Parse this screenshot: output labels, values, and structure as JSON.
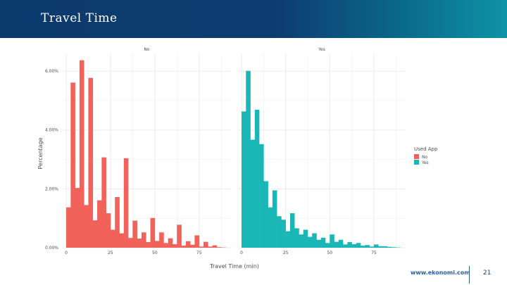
{
  "slide": {
    "title": "Travel Time",
    "footer_logo": "www.ekonomi.com",
    "page_number": "21"
  },
  "colors": {
    "banner_start": "#0b3a6e",
    "banner_end": "#0f93a6",
    "no": "#f0625a",
    "yes": "#1bb6b6",
    "grid": "#ebebeb"
  },
  "chart_data": {
    "type": "bar",
    "facets": [
      "No",
      "Yes"
    ],
    "xlabel": "Travel Time (min)",
    "ylabel": "Percentage",
    "xlim": [
      -2,
      93
    ],
    "ylim": [
      0,
      0.066
    ],
    "x_ticks": [
      0,
      25,
      50,
      75
    ],
    "y_ticks": [
      0,
      0.02,
      0.04,
      0.06
    ],
    "y_tick_labels": [
      "0.00%",
      "2.00%",
      "4.00%",
      "6.00%"
    ],
    "bin_width": 2.5,
    "legend": {
      "title": "Used App",
      "entries": [
        "No",
        "Yes"
      ],
      "position": "right"
    },
    "grid": true,
    "series": [
      {
        "name": "No",
        "x": [
          1.25,
          3.75,
          6.25,
          8.75,
          11.25,
          13.75,
          16.25,
          18.75,
          21.25,
          23.75,
          26.25,
          28.75,
          31.25,
          33.75,
          36.25,
          38.75,
          41.25,
          43.75,
          46.25,
          48.75,
          51.25,
          53.75,
          56.25,
          58.75,
          61.25,
          63.75,
          66.25,
          68.75,
          71.25,
          73.75,
          76.25,
          78.75,
          81.25,
          83.75,
          86.25,
          88.75
        ],
        "values": [
          0.0137,
          0.0561,
          0.0203,
          0.0637,
          0.0145,
          0.0577,
          0.0093,
          0.0161,
          0.0307,
          0.0117,
          0.0061,
          0.0172,
          0.0049,
          0.0304,
          0.0033,
          0.0092,
          0.0031,
          0.0052,
          0.0019,
          0.0101,
          0.0023,
          0.0052,
          0.0016,
          0.0032,
          0.0012,
          0.0078,
          0.0007,
          0.0022,
          0.001,
          0.0042,
          0.0004,
          0.002,
          0.0004,
          0.0008,
          0.0002,
          0.0001
        ]
      },
      {
        "name": "Yes",
        "x": [
          1.25,
          3.75,
          6.25,
          8.75,
          11.25,
          13.75,
          16.25,
          18.75,
          21.25,
          23.75,
          26.25,
          28.75,
          31.25,
          33.75,
          36.25,
          38.75,
          41.25,
          43.75,
          46.25,
          48.75,
          51.25,
          53.75,
          56.25,
          58.75,
          61.25,
          63.75,
          66.25,
          68.75,
          71.25,
          73.75,
          76.25,
          78.75,
          81.25,
          83.75,
          86.25,
          88.75
        ],
        "values": [
          0.0463,
          0.0601,
          0.0367,
          0.0469,
          0.0352,
          0.0226,
          0.0137,
          0.0195,
          0.0107,
          0.0095,
          0.0056,
          0.0117,
          0.0066,
          0.0045,
          0.0061,
          0.0037,
          0.0049,
          0.0027,
          0.0034,
          0.0016,
          0.0045,
          0.002,
          0.0027,
          0.0011,
          0.0019,
          0.0012,
          0.0016,
          0.0007,
          0.0009,
          0.0004,
          0.0011,
          0.0005,
          0.0005,
          0.0003,
          0.0002,
          0.0001
        ]
      }
    ]
  }
}
